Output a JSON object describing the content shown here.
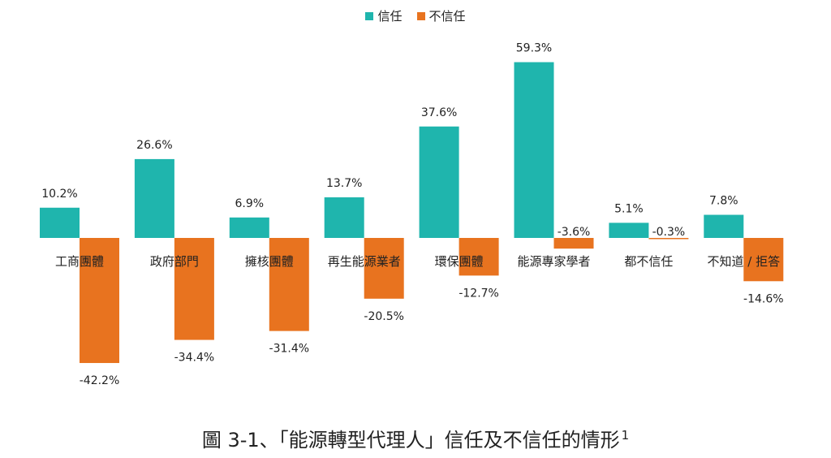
{
  "chart_data": {
    "type": "bar",
    "categories": [
      "工商團體",
      "政府部門",
      "擁核團體",
      "再生能源業者",
      "環保團體",
      "能源專家學者",
      "都不信任",
      "不知道 / 拒答"
    ],
    "series": [
      {
        "name": "信任",
        "color": "#1fb5ad",
        "values": [
          10.2,
          26.6,
          6.9,
          13.7,
          37.6,
          59.3,
          5.1,
          7.8
        ]
      },
      {
        "name": "不信任",
        "color": "#e8731f",
        "values": [
          -42.2,
          -34.4,
          -31.4,
          -20.5,
          -12.7,
          -3.6,
          -0.3,
          -14.6
        ]
      }
    ],
    "data_labels": {
      "trust": [
        "10.2%",
        "26.6%",
        "6.9%",
        "13.7%",
        "37.6%",
        "59.3%",
        "5.1%",
        "7.8%"
      ],
      "distrust": [
        "-42.2%",
        "-34.4%",
        "-31.4%",
        "-20.5%",
        "-12.7%",
        "-3.6%",
        "-0.3%",
        "-14.6%"
      ]
    },
    "legend_position": "top-center",
    "grid": false
  },
  "legend": {
    "trust": "信任",
    "distrust": "不信任"
  },
  "caption": {
    "text": "圖 3-1、「能源轉型代理人」信任及不信任的情形",
    "footnote": "1"
  }
}
